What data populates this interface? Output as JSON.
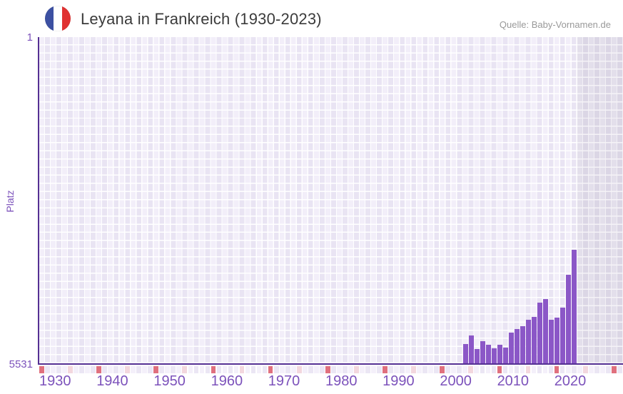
{
  "header": {
    "title": "Leyana in Frankreich (1930-2023)",
    "source": "Quelle: Baby-Vornamen.de",
    "flag_icon": "france-flag-icon"
  },
  "colors": {
    "bar": "#8b57c7",
    "axis_line": "#553093",
    "axis_label_text": "#7c52bb",
    "tick_decade": "#e0707e",
    "tick_half_decade": "#f3d7de",
    "plot_cell_light": "#f2eef9",
    "plot_cell_dark": "#e9e4f3",
    "future_cell_light": "#e3dfeb",
    "future_cell_dark": "#dbd6e5",
    "title_text": "#3b3b3b",
    "source_text": "#999999",
    "flag_blue": "#3c50a2",
    "flag_red": "#e03232"
  },
  "chart_data": {
    "type": "bar",
    "title": "Leyana in Frankreich (1930-2023)",
    "ylabel": "Platz",
    "y_axis": {
      "min": 1,
      "max": 5531,
      "inverted": true,
      "top_label": "1",
      "bottom_label": "5531"
    },
    "x_axis": {
      "start_year": 1930,
      "end_year": 2023,
      "display_end_year": 2031,
      "tick_years": [
        1930,
        1940,
        1950,
        1960,
        1970,
        1980,
        1990,
        2000,
        2010,
        2020
      ]
    },
    "legend": "none",
    "series": [
      {
        "name": "Platz von Leyana in Frankreich",
        "points": [
          {
            "year": 2004,
            "rank": 5207
          },
          {
            "year": 2005,
            "rank": 5059
          },
          {
            "year": 2006,
            "rank": 5285
          },
          {
            "year": 2007,
            "rank": 5154
          },
          {
            "year": 2008,
            "rank": 5221
          },
          {
            "year": 2009,
            "rank": 5276
          },
          {
            "year": 2010,
            "rank": 5221
          },
          {
            "year": 2011,
            "rank": 5264
          },
          {
            "year": 2012,
            "rank": 5015
          },
          {
            "year": 2013,
            "rank": 4945
          },
          {
            "year": 2014,
            "rank": 4903
          },
          {
            "year": 2015,
            "rank": 4792
          },
          {
            "year": 2016,
            "rank": 4748
          },
          {
            "year": 2017,
            "rank": 4501
          },
          {
            "year": 2018,
            "rank": 4442
          },
          {
            "year": 2019,
            "rank": 4798
          },
          {
            "year": 2020,
            "rank": 4752
          },
          {
            "year": 2021,
            "rank": 4590
          },
          {
            "year": 2022,
            "rank": 4034
          },
          {
            "year": 2023,
            "rank": 3611
          }
        ]
      }
    ]
  }
}
